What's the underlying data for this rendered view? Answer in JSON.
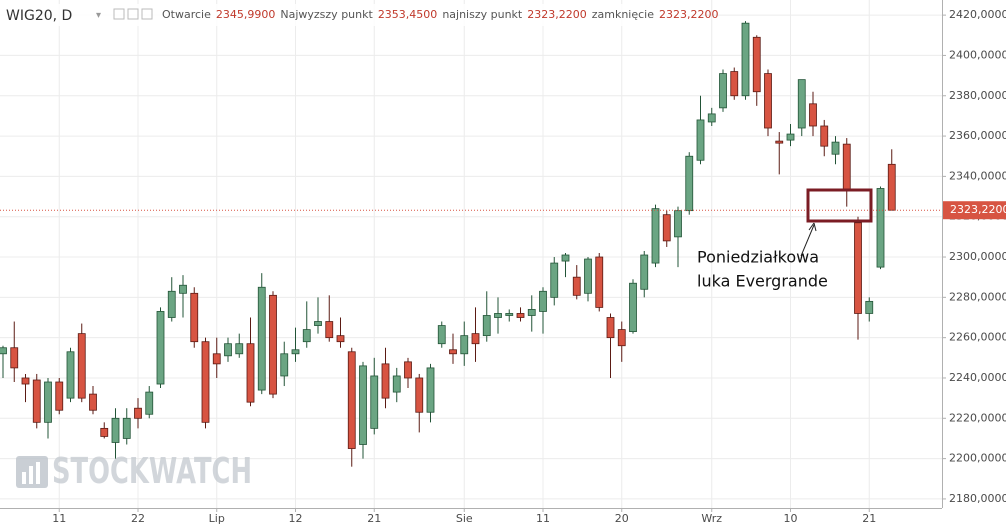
{
  "chart_data": {
    "type": "candlestick",
    "header": {
      "symbol": "WIG20, D",
      "fields": [
        {
          "label": "Otwarcie",
          "value": "2345,9900"
        },
        {
          "label": "Najwyzszy punkt",
          "value": "2353,4500"
        },
        {
          "label": "najniszy punkt",
          "value": "2323,2200"
        },
        {
          "label": "zamknięcie",
          "value": "2323,2200"
        }
      ]
    },
    "categories": [
      null,
      null,
      null,
      null,
      null,
      "11",
      null,
      null,
      null,
      null,
      null,
      null,
      "22",
      null,
      null,
      null,
      null,
      null,
      null,
      "Lip",
      null,
      null,
      null,
      null,
      null,
      null,
      "12",
      null,
      null,
      null,
      null,
      null,
      null,
      "21",
      null,
      null,
      null,
      null,
      null,
      null,
      null,
      "Sie",
      null,
      null,
      null,
      null,
      null,
      null,
      "11",
      null,
      null,
      null,
      null,
      null,
      null,
      "20",
      null,
      null,
      null,
      null,
      null,
      null,
      null,
      "Wrz",
      null,
      null,
      null,
      null,
      null,
      null,
      "10",
      null,
      null,
      null,
      null,
      null,
      null,
      "21",
      null,
      null
    ],
    "open": [
      2252,
      2255,
      2240,
      2239,
      2218,
      2238,
      2230,
      2262,
      2232,
      2215,
      2208,
      2210,
      2225,
      2222,
      2237,
      2270,
      2282,
      2282,
      2258,
      2252,
      2251,
      2252,
      2257,
      2234,
      2281,
      2241,
      2252,
      2258,
      2266,
      2268,
      2261,
      2253,
      2207,
      2215,
      2247,
      2233,
      2248,
      2240,
      2223,
      2257,
      2254,
      2252,
      2262,
      2261,
      2270,
      2271,
      2272,
      2271,
      2273,
      2280,
      2298,
      2290,
      2282,
      2300,
      2270,
      2264,
      2263,
      2284,
      2297,
      2321,
      2310,
      2323,
      2348,
      2367,
      2374,
      2392,
      2380,
      2409,
      2391,
      2357.5,
      2358,
      2364,
      2376,
      2365,
      2351,
      2356,
      2317,
      2272,
      2295,
      2345.99
    ],
    "high": [
      2256,
      2268,
      2242,
      2242,
      2240,
      2240,
      2255,
      2267,
      2236,
      2218,
      2225,
      2225,
      2230,
      2236,
      2275,
      2290,
      2291,
      2285,
      2260,
      2260,
      2260,
      2262,
      2270,
      2292,
      2283,
      2258,
      2265,
      2278,
      2280,
      2281,
      2270,
      2255,
      2248,
      2250,
      2255,
      2245,
      2250,
      2242,
      2247,
      2268,
      2262,
      2268,
      2275,
      2283,
      2280,
      2274,
      2275,
      2281,
      2285,
      2300,
      2302,
      2296,
      2300,
      2302,
      2272,
      2268,
      2289,
      2303,
      2326,
      2323,
      2325,
      2352,
      2380,
      2374,
      2393,
      2394,
      2417,
      2410,
      2393,
      2362,
      2366,
      2388,
      2382,
      2368,
      2360,
      2359,
      2320,
      2280,
      2335,
      2353.45
    ],
    "low": [
      2240,
      2238,
      2228,
      2215,
      2210,
      2222,
      2228,
      2228,
      2222,
      2210,
      2200,
      2207,
      2215,
      2220,
      2235,
      2268,
      2270,
      2255,
      2215,
      2240,
      2248,
      2250,
      2226,
      2232,
      2230,
      2236,
      2248,
      2255,
      2262,
      2258,
      2255,
      2196,
      2200,
      2212,
      2225,
      2228,
      2235,
      2213,
      2218,
      2255,
      2247,
      2246,
      2248,
      2258,
      2262,
      2268,
      2268,
      2263,
      2262,
      2276,
      2290,
      2279,
      2278,
      2273,
      2240,
      2248,
      2262,
      2280,
      2295,
      2305,
      2295,
      2321,
      2346,
      2365,
      2372,
      2378,
      2378,
      2375,
      2360,
      2341,
      2355,
      2360,
      2360,
      2350,
      2346,
      2325,
      2259,
      2268,
      2294,
      2323.22
    ],
    "close": [
      2255,
      2245,
      2237,
      2218,
      2238,
      2224,
      2253,
      2230,
      2224,
      2211,
      2220,
      2220,
      2220,
      2233,
      2273,
      2283,
      2286,
      2258,
      2218,
      2247,
      2257,
      2257,
      2228,
      2285,
      2232,
      2252,
      2254,
      2264,
      2268,
      2260,
      2258,
      2205,
      2246,
      2241,
      2230,
      2241,
      2240,
      2223,
      2245,
      2266,
      2252,
      2261,
      2257,
      2271,
      2272,
      2272,
      2270,
      2274,
      2283,
      2297,
      2301,
      2281,
      2299,
      2275,
      2260,
      2256,
      2287,
      2301,
      2324,
      2308,
      2323,
      2350,
      2368,
      2371,
      2391,
      2380,
      2416,
      2382,
      2364,
      2356.5,
      2361,
      2388,
      2365,
      2355,
      2357,
      2333,
      2272,
      2278,
      2334,
      2323.22
    ],
    "up_color": "#6ba583",
    "down_color": "#d75442",
    "ylim": [
      2175.5,
      2427.5
    ],
    "yticks": [
      {
        "value": 2180,
        "label": "2180,0000"
      },
      {
        "value": 2200,
        "label": "2200,0000"
      },
      {
        "value": 2220,
        "label": "2220,0000"
      },
      {
        "value": 2240,
        "label": "2240,0000"
      },
      {
        "value": 2260,
        "label": "2260,0000"
      },
      {
        "value": 2280,
        "label": "2280,0000"
      },
      {
        "value": 2300,
        "label": "2300,0000"
      },
      {
        "value": 2320,
        "label": "2320,0000"
      },
      {
        "value": 2340,
        "label": "2340,0000"
      },
      {
        "value": 2360,
        "label": "2360,0000"
      },
      {
        "value": 2380,
        "label": "2380,0000"
      },
      {
        "value": 2400,
        "label": "2400,0000"
      },
      {
        "value": 2420,
        "label": "2420,0000"
      }
    ],
    "last_price": {
      "value": 2323.22,
      "label": "2323,2200",
      "color": "#d75442"
    },
    "annotation": [
      "Poniedziałkowa",
      "luka  Evergrande"
    ],
    "watermark": "STOCKWATCH",
    "grid": true
  }
}
